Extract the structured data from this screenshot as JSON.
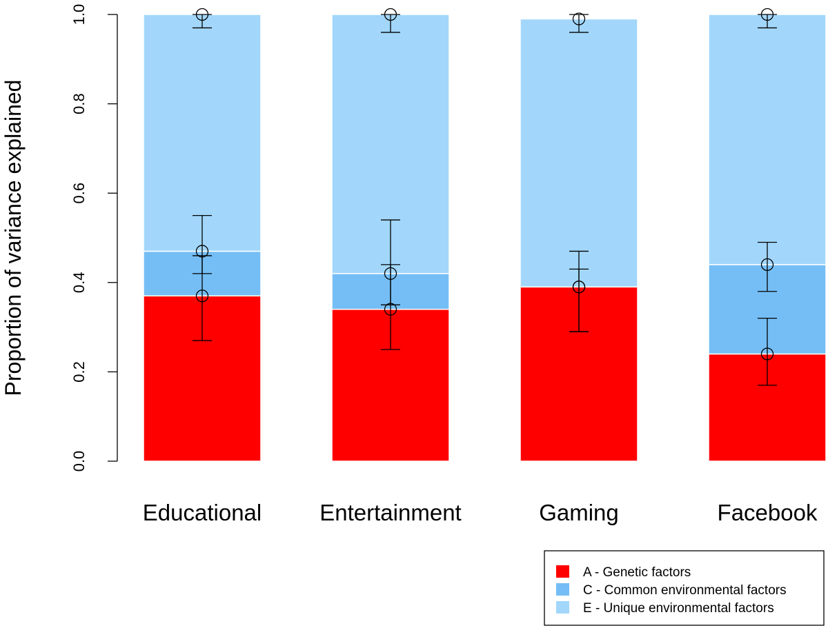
{
  "chart_data": {
    "type": "stacked-bar",
    "title": "",
    "xlabel": "",
    "ylabel": "Proportion of variance explained",
    "ylim": [
      0,
      1
    ],
    "yticks": [
      "0.0",
      "0.2",
      "0.4",
      "0.6",
      "0.8",
      "1.0"
    ],
    "grid": false,
    "legend_position": "bottom-right",
    "categories": [
      "Educational",
      "Entertainment",
      "Gaming",
      "Facebook"
    ],
    "series": [
      {
        "name": "A - Genetic factors",
        "color": "#ff0000",
        "values": [
          0.37,
          0.34,
          0.39,
          0.24
        ],
        "ci_low": [
          0.27,
          0.25,
          0.29,
          0.17
        ],
        "ci_high": [
          0.46,
          0.44,
          0.47,
          0.32
        ]
      },
      {
        "name": "C - Common environmental factors",
        "color": "#75bef5",
        "values": [
          0.1,
          0.08,
          0.0,
          0.2
        ],
        "ci_low": [
          0.42,
          0.35,
          0.29,
          0.38
        ],
        "ci_high": [
          0.55,
          0.54,
          0.43,
          0.49
        ]
      },
      {
        "name": "E - Unique environmental factors",
        "color": "#a2d7fb",
        "values": [
          0.53,
          0.58,
          0.6,
          0.56
        ],
        "ci_low": [
          0.97,
          0.96,
          0.96,
          0.97
        ],
        "ci_high": [
          1.0,
          1.0,
          1.0,
          1.0
        ]
      }
    ]
  }
}
